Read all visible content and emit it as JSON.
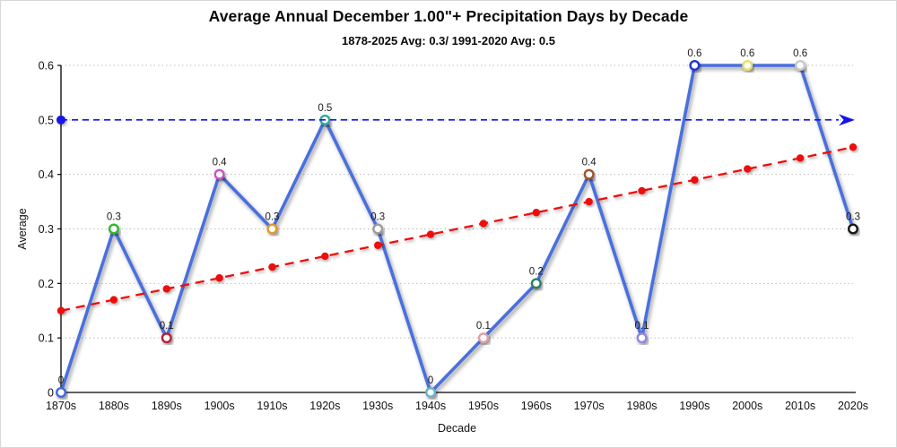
{
  "header": {
    "title": "Average Annual December 1.00\"+ Precipitation Days by Decade",
    "subtitle": "1878-2025 Avg: 0.3/ 1991-2020 Avg: 0.5"
  },
  "chart_data": {
    "type": "line",
    "title": "Average Annual December 1.00\"+ Precipitation Days by Decade",
    "subtitle": "1878-2025 Avg: 0.3/ 1991-2020 Avg: 0.5",
    "xlabel": "Decade",
    "ylabel": "Average",
    "ylim": [
      0,
      0.6
    ],
    "yticks": [
      0,
      0.1,
      0.2,
      0.3,
      0.4,
      0.5,
      0.6
    ],
    "ytick_labels": [
      "0",
      "0.1",
      "0.2",
      "0.3",
      "0.4",
      "0.5",
      "0.6"
    ],
    "grid": "horizontal-dotted",
    "legend": "none",
    "categories": [
      "1870s",
      "1880s",
      "1890s",
      "1900s",
      "1910s",
      "1920s",
      "1930s",
      "1940s",
      "1950s",
      "1960s",
      "1970s",
      "1980s",
      "1990s",
      "2000s",
      "2010s",
      "2020s"
    ],
    "series": [
      {
        "name": "decade-average",
        "type": "line",
        "color": "#4a6fdc",
        "values": [
          0,
          0.3,
          0.1,
          0.4,
          0.3,
          0.5,
          0.3,
          0,
          0.1,
          0.2,
          0.4,
          0.1,
          0.6,
          0.6,
          0.6,
          0.3
        ],
        "point_labels": [
          "0",
          "0.3",
          "0.1",
          "0.4",
          "0.3",
          "0.5",
          "0.3",
          "0",
          "0.1",
          "0.2",
          "0.4",
          "0.1",
          "0.6",
          "0.6",
          "0.6",
          "0.3"
        ],
        "marker_colors": [
          "#4169e1",
          "#2eb82e",
          "#b22235",
          "#c455c4",
          "#e09a28",
          "#2fa8a2",
          "#9d9d9d",
          "#62b4c8",
          "#e0a0a4",
          "#2e7d66",
          "#a0522d",
          "#9684e0",
          "#2236cc",
          "#e6df66",
          "#c8c8c8",
          "#141414"
        ]
      },
      {
        "name": "trend-line",
        "type": "dashed-line",
        "color": "#ee1111",
        "values": [
          0.15,
          0.17,
          0.19,
          0.21,
          0.23,
          0.25,
          0.27,
          0.29,
          0.31,
          0.33,
          0.35,
          0.37,
          0.39,
          0.41,
          0.43,
          0.45
        ]
      },
      {
        "name": "avg-1991-2020-reference",
        "type": "reference-line",
        "color": "#1414e6",
        "value": 0.5
      }
    ]
  }
}
